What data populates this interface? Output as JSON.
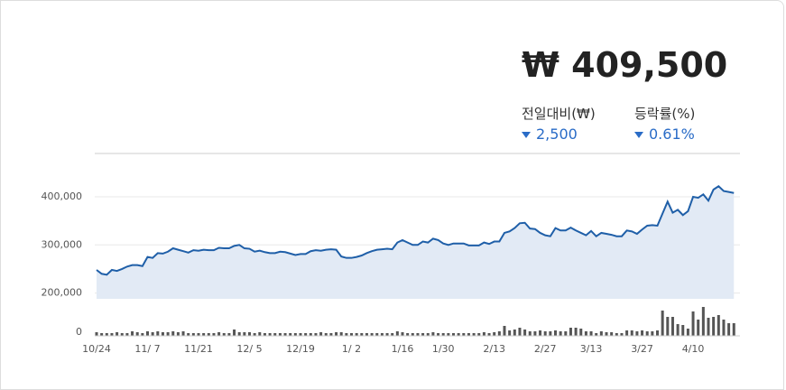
{
  "summary": {
    "price": "₩ 409,500",
    "change_label": "전일대비(₩)",
    "change": "2,500",
    "rate_label": "등락률(%)",
    "rate": "0.61%"
  },
  "chart_data": {
    "type": "line",
    "categories": [
      "10/24",
      null,
      null,
      null,
      null,
      null,
      null,
      null,
      null,
      null,
      "11/ 7",
      null,
      null,
      null,
      null,
      null,
      null,
      null,
      null,
      null,
      "11/21",
      null,
      null,
      null,
      null,
      null,
      null,
      null,
      null,
      null,
      "12/ 5",
      null,
      null,
      null,
      null,
      null,
      null,
      null,
      null,
      null,
      "12/19",
      null,
      null,
      null,
      null,
      null,
      null,
      null,
      null,
      null,
      "1/ 2",
      null,
      null,
      null,
      null,
      null,
      null,
      null,
      null,
      null,
      "1/16",
      null,
      null,
      null,
      null,
      null,
      null,
      null,
      "1/30",
      null,
      null,
      null,
      null,
      null,
      null,
      null,
      null,
      null,
      "2/13",
      null,
      null,
      null,
      null,
      null,
      null,
      null,
      null,
      null,
      "2/27",
      null,
      null,
      null,
      null,
      null,
      null,
      null,
      null,
      "3/13",
      null,
      null,
      null,
      null,
      null,
      null,
      null,
      null,
      null,
      "3/27",
      null,
      null,
      null,
      null,
      null,
      null,
      null,
      null,
      null,
      "4/10",
      null,
      null,
      null,
      null,
      null,
      null,
      null,
      null
    ],
    "series": [
      {
        "color": "#1f5fa8",
        "values": [
          248000,
          240000,
          238000,
          248000,
          246000,
          250000,
          255000,
          258000,
          258000,
          256000,
          275000,
          273000,
          283000,
          282000,
          286000,
          293000,
          290000,
          287000,
          284000,
          289000,
          288000,
          290000,
          289000,
          289000,
          294000,
          293000,
          293000,
          298000,
          300000,
          293000,
          292000,
          286000,
          288000,
          285000,
          283000,
          283000,
          286000,
          285000,
          282000,
          279000,
          281000,
          281000,
          287000,
          289000,
          288000,
          290000,
          291000,
          290000,
          276000,
          273000,
          273000,
          275000,
          278000,
          283000,
          287000,
          290000,
          291000,
          292000,
          291000,
          305000,
          310000,
          305000,
          300000,
          300000,
          307000,
          305000,
          313000,
          310000,
          303000,
          300000,
          303000,
          303000,
          303000,
          299000,
          299000,
          299000,
          305000,
          302000,
          307000,
          307000,
          325000,
          328000,
          335000,
          345000,
          346000,
          334000,
          333000,
          325000,
          320000,
          318000,
          335000,
          330000,
          330000,
          336000,
          330000,
          325000,
          320000,
          329000,
          318000,
          325000,
          323000,
          321000,
          318000,
          318000,
          330000,
          328000,
          323000,
          332000,
          340000,
          341000,
          340000,
          365000,
          390000,
          367000,
          373000,
          362000,
          370000,
          400000,
          398000,
          405000,
          392000,
          415000,
          422000,
          412000,
          410000,
          408000
        ]
      },
      {
        "color": "#555555",
        "axis": "y2",
        "values": [
          4,
          3,
          3,
          3,
          4,
          3,
          3,
          5,
          4,
          3,
          5,
          4,
          5,
          4,
          4,
          5,
          4,
          5,
          3,
          3,
          3,
          3,
          3,
          3,
          4,
          3,
          3,
          7,
          4,
          4,
          4,
          3,
          4,
          3,
          3,
          3,
          3,
          3,
          3,
          3,
          3,
          3,
          3,
          3,
          4,
          3,
          3,
          4,
          4,
          3,
          3,
          3,
          3,
          3,
          3,
          3,
          3,
          3,
          3,
          5,
          4,
          3,
          3,
          3,
          3,
          3,
          4,
          3,
          3,
          3,
          3,
          3,
          3,
          3,
          3,
          3,
          4,
          3,
          4,
          5,
          11,
          6,
          7,
          9,
          7,
          5,
          5,
          6,
          5,
          5,
          6,
          5,
          5,
          9,
          9,
          8,
          5,
          5,
          3,
          5,
          4,
          4,
          3,
          3,
          6,
          6,
          5,
          6,
          5,
          5,
          6,
          28,
          21,
          21,
          13,
          12,
          8,
          27,
          18,
          32,
          20,
          21,
          23,
          18,
          14,
          14
        ]
      }
    ],
    "ylim": [
      188000,
      490000
    ],
    "yticks": [
      {
        "value": 200000,
        "label": "200,000"
      },
      {
        "value": 300000,
        "label": "300,000"
      },
      {
        "value": 400000,
        "label": "400,000"
      }
    ],
    "y2lim": [
      0,
      36
    ],
    "y2ticks": [
      0
    ],
    "grid": true,
    "area_color": "#e2eaf5"
  }
}
